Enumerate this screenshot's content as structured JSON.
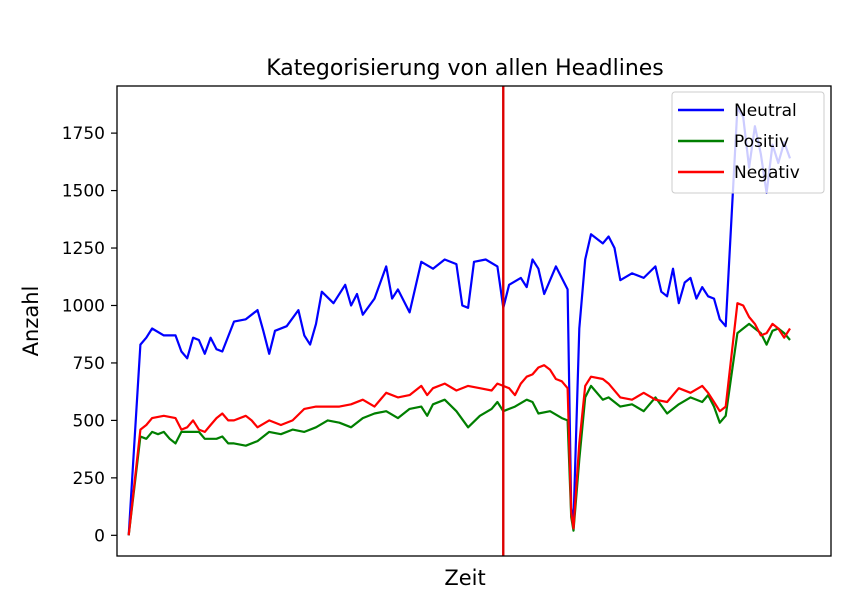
{
  "chart_data": {
    "type": "line",
    "title": "Kategorisierung von allen Headlines",
    "xlabel": "Zeit",
    "ylabel": "Anzahl",
    "x_ticks_shown": false,
    "xlim": [
      -10,
      600
    ],
    "ylim": [
      -90,
      1955
    ],
    "y_ticks": [
      0,
      250,
      500,
      750,
      1000,
      1250,
      1500,
      1750
    ],
    "grid": false,
    "legend_position": "top-right",
    "vertical_marker": {
      "x": 320,
      "color": "#dd0000"
    },
    "series": [
      {
        "name": "Neutral",
        "color": "#0000ff",
        "points": [
          [
            0,
            0
          ],
          [
            10,
            830
          ],
          [
            15,
            860
          ],
          [
            20,
            900
          ],
          [
            30,
            870
          ],
          [
            40,
            870
          ],
          [
            45,
            800
          ],
          [
            50,
            770
          ],
          [
            55,
            860
          ],
          [
            60,
            850
          ],
          [
            65,
            790
          ],
          [
            70,
            860
          ],
          [
            75,
            810
          ],
          [
            80,
            800
          ],
          [
            90,
            930
          ],
          [
            100,
            940
          ],
          [
            110,
            980
          ],
          [
            115,
            890
          ],
          [
            120,
            790
          ],
          [
            125,
            890
          ],
          [
            135,
            910
          ],
          [
            145,
            980
          ],
          [
            150,
            870
          ],
          [
            155,
            830
          ],
          [
            160,
            920
          ],
          [
            165,
            1060
          ],
          [
            175,
            1010
          ],
          [
            185,
            1090
          ],
          [
            190,
            1000
          ],
          [
            195,
            1050
          ],
          [
            200,
            960
          ],
          [
            210,
            1030
          ],
          [
            220,
            1170
          ],
          [
            225,
            1030
          ],
          [
            230,
            1070
          ],
          [
            240,
            970
          ],
          [
            250,
            1190
          ],
          [
            260,
            1160
          ],
          [
            270,
            1200
          ],
          [
            280,
            1180
          ],
          [
            285,
            1000
          ],
          [
            290,
            990
          ],
          [
            295,
            1190
          ],
          [
            305,
            1200
          ],
          [
            315,
            1170
          ],
          [
            320,
            990
          ],
          [
            325,
            1090
          ],
          [
            335,
            1120
          ],
          [
            340,
            1080
          ],
          [
            345,
            1200
          ],
          [
            350,
            1160
          ],
          [
            355,
            1050
          ],
          [
            365,
            1170
          ],
          [
            375,
            1070
          ],
          [
            378,
            120
          ],
          [
            380,
            60
          ],
          [
            385,
            900
          ],
          [
            390,
            1200
          ],
          [
            395,
            1310
          ],
          [
            405,
            1270
          ],
          [
            410,
            1300
          ],
          [
            415,
            1250
          ],
          [
            420,
            1110
          ],
          [
            430,
            1140
          ],
          [
            440,
            1120
          ],
          [
            450,
            1170
          ],
          [
            455,
            1060
          ],
          [
            460,
            1040
          ],
          [
            465,
            1160
          ],
          [
            470,
            1010
          ],
          [
            475,
            1100
          ],
          [
            480,
            1120
          ],
          [
            485,
            1030
          ],
          [
            490,
            1080
          ],
          [
            495,
            1040
          ],
          [
            500,
            1030
          ],
          [
            505,
            940
          ],
          [
            510,
            910
          ],
          [
            520,
            1860
          ],
          [
            525,
            1820
          ],
          [
            530,
            1600
          ],
          [
            535,
            1780
          ],
          [
            540,
            1660
          ],
          [
            545,
            1490
          ],
          [
            550,
            1700
          ],
          [
            555,
            1620
          ],
          [
            560,
            1710
          ],
          [
            565,
            1640
          ]
        ]
      },
      {
        "name": "Positiv",
        "color": "#007f00",
        "points": [
          [
            0,
            0
          ],
          [
            10,
            430
          ],
          [
            15,
            420
          ],
          [
            20,
            450
          ],
          [
            25,
            440
          ],
          [
            30,
            450
          ],
          [
            35,
            420
          ],
          [
            40,
            400
          ],
          [
            45,
            450
          ],
          [
            50,
            450
          ],
          [
            60,
            450
          ],
          [
            65,
            420
          ],
          [
            75,
            420
          ],
          [
            80,
            430
          ],
          [
            85,
            400
          ],
          [
            90,
            400
          ],
          [
            100,
            390
          ],
          [
            110,
            410
          ],
          [
            120,
            450
          ],
          [
            130,
            440
          ],
          [
            140,
            460
          ],
          [
            150,
            450
          ],
          [
            160,
            470
          ],
          [
            170,
            500
          ],
          [
            180,
            490
          ],
          [
            190,
            470
          ],
          [
            200,
            510
          ],
          [
            210,
            530
          ],
          [
            220,
            540
          ],
          [
            230,
            510
          ],
          [
            240,
            550
          ],
          [
            250,
            560
          ],
          [
            255,
            520
          ],
          [
            260,
            570
          ],
          [
            270,
            590
          ],
          [
            280,
            540
          ],
          [
            290,
            470
          ],
          [
            300,
            520
          ],
          [
            310,
            550
          ],
          [
            315,
            580
          ],
          [
            320,
            540
          ],
          [
            330,
            560
          ],
          [
            340,
            590
          ],
          [
            345,
            580
          ],
          [
            350,
            530
          ],
          [
            360,
            540
          ],
          [
            370,
            510
          ],
          [
            375,
            500
          ],
          [
            378,
            80
          ],
          [
            380,
            20
          ],
          [
            385,
            330
          ],
          [
            390,
            600
          ],
          [
            395,
            650
          ],
          [
            405,
            590
          ],
          [
            410,
            600
          ],
          [
            420,
            560
          ],
          [
            430,
            570
          ],
          [
            440,
            540
          ],
          [
            450,
            600
          ],
          [
            460,
            530
          ],
          [
            470,
            570
          ],
          [
            480,
            600
          ],
          [
            490,
            580
          ],
          [
            495,
            610
          ],
          [
            500,
            560
          ],
          [
            505,
            490
          ],
          [
            510,
            520
          ],
          [
            520,
            880
          ],
          [
            525,
            900
          ],
          [
            530,
            920
          ],
          [
            535,
            900
          ],
          [
            540,
            880
          ],
          [
            545,
            830
          ],
          [
            550,
            890
          ],
          [
            555,
            900
          ],
          [
            560,
            880
          ],
          [
            565,
            850
          ]
        ]
      },
      {
        "name": "Negativ",
        "color": "#ff0000",
        "points": [
          [
            0,
            0
          ],
          [
            10,
            460
          ],
          [
            15,
            480
          ],
          [
            20,
            510
          ],
          [
            30,
            520
          ],
          [
            40,
            510
          ],
          [
            45,
            460
          ],
          [
            50,
            470
          ],
          [
            55,
            500
          ],
          [
            60,
            460
          ],
          [
            65,
            450
          ],
          [
            70,
            480
          ],
          [
            75,
            510
          ],
          [
            80,
            530
          ],
          [
            85,
            500
          ],
          [
            90,
            500
          ],
          [
            100,
            520
          ],
          [
            105,
            500
          ],
          [
            110,
            470
          ],
          [
            120,
            500
          ],
          [
            130,
            480
          ],
          [
            140,
            500
          ],
          [
            150,
            550
          ],
          [
            160,
            560
          ],
          [
            170,
            560
          ],
          [
            180,
            560
          ],
          [
            190,
            570
          ],
          [
            200,
            590
          ],
          [
            210,
            560
          ],
          [
            220,
            620
          ],
          [
            230,
            600
          ],
          [
            240,
            610
          ],
          [
            250,
            650
          ],
          [
            255,
            610
          ],
          [
            260,
            640
          ],
          [
            270,
            660
          ],
          [
            280,
            630
          ],
          [
            290,
            650
          ],
          [
            300,
            640
          ],
          [
            310,
            630
          ],
          [
            315,
            660
          ],
          [
            320,
            650
          ],
          [
            325,
            640
          ],
          [
            330,
            610
          ],
          [
            335,
            660
          ],
          [
            340,
            690
          ],
          [
            345,
            700
          ],
          [
            350,
            730
          ],
          [
            355,
            740
          ],
          [
            360,
            720
          ],
          [
            365,
            680
          ],
          [
            370,
            670
          ],
          [
            375,
            640
          ],
          [
            378,
            100
          ],
          [
            380,
            30
          ],
          [
            385,
            400
          ],
          [
            390,
            650
          ],
          [
            395,
            690
          ],
          [
            405,
            680
          ],
          [
            410,
            660
          ],
          [
            420,
            600
          ],
          [
            430,
            590
          ],
          [
            440,
            620
          ],
          [
            450,
            590
          ],
          [
            460,
            580
          ],
          [
            470,
            640
          ],
          [
            480,
            620
          ],
          [
            490,
            650
          ],
          [
            495,
            620
          ],
          [
            500,
            580
          ],
          [
            505,
            540
          ],
          [
            510,
            560
          ],
          [
            520,
            1010
          ],
          [
            525,
            1000
          ],
          [
            530,
            950
          ],
          [
            535,
            920
          ],
          [
            540,
            870
          ],
          [
            545,
            880
          ],
          [
            550,
            920
          ],
          [
            555,
            900
          ],
          [
            560,
            860
          ],
          [
            565,
            900
          ]
        ]
      }
    ]
  }
}
